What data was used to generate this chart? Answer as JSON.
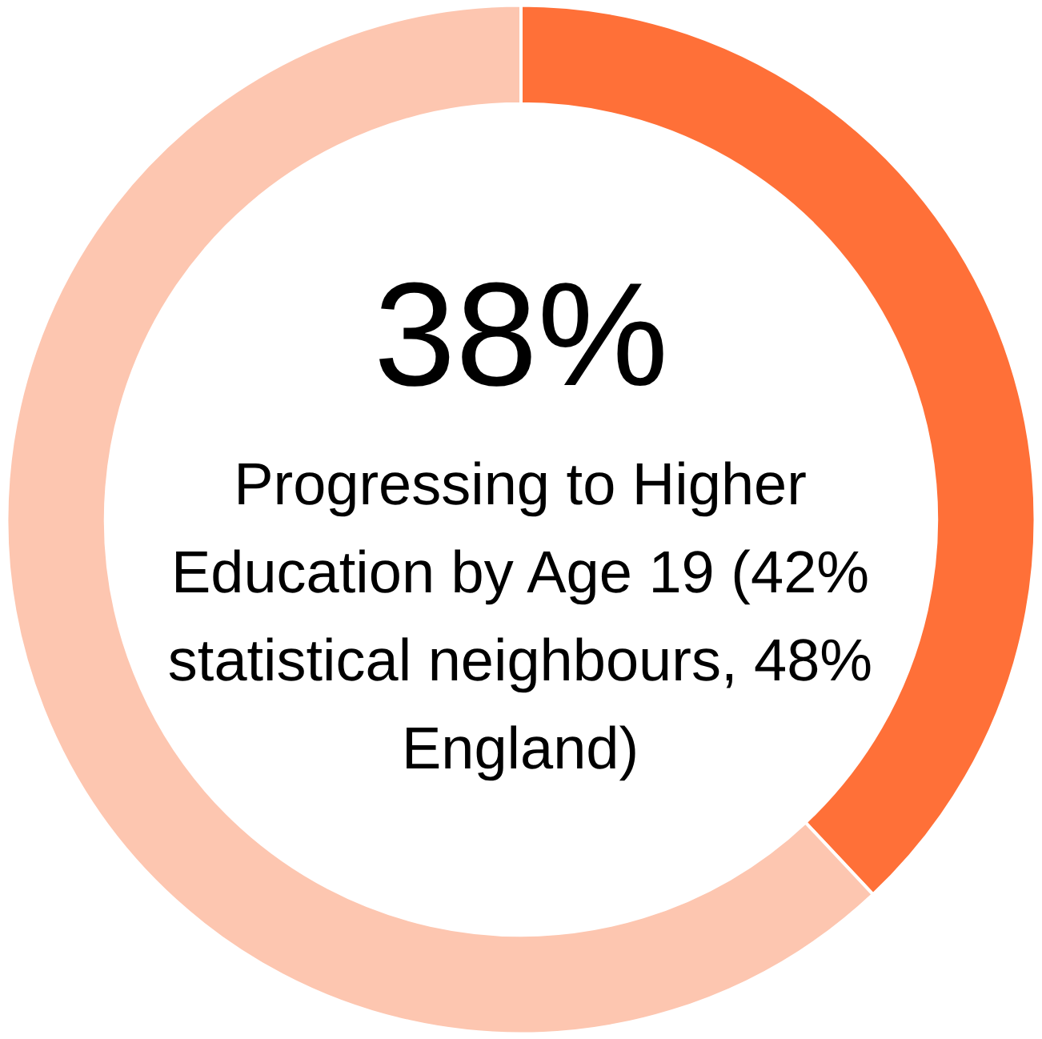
{
  "chart_data": {
    "type": "donut",
    "categories": [
      null,
      null
    ],
    "values": [
      38,
      62
    ],
    "colors": [
      "#ff7038",
      "#fdc6b0"
    ],
    "value_labels": [
      "38%",
      null
    ],
    "annotations": [
      "Progressing to Higher Education by Age 19 (42% statistical neighbours, 48% England)"
    ]
  }
}
